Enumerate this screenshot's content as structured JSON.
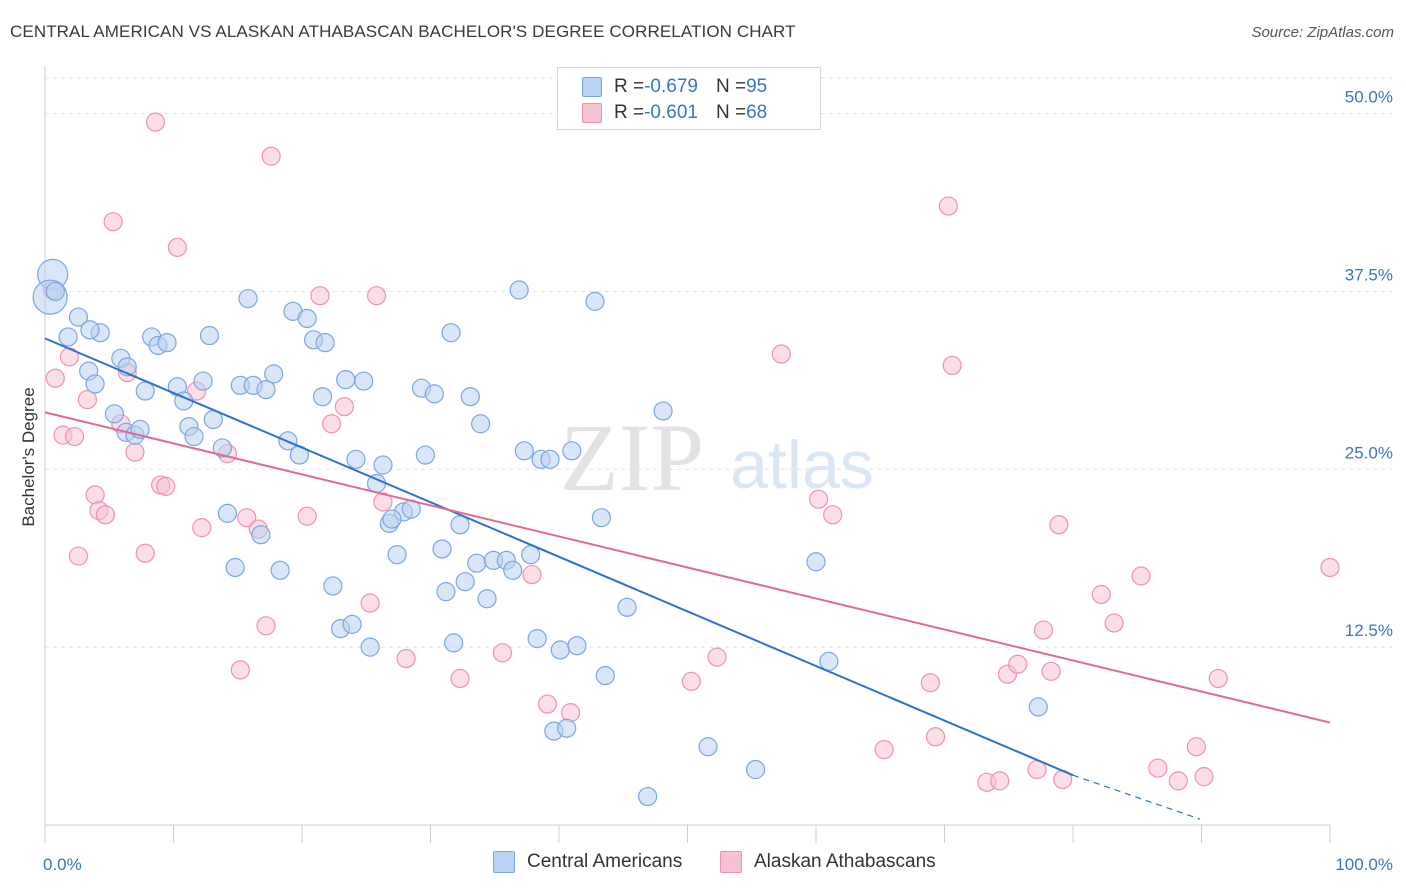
{
  "title": "CENTRAL AMERICAN VS ALASKAN ATHABASCAN BACHELOR'S DEGREE CORRELATION CHART",
  "source": "Source: ZipAtlas.com",
  "watermark": {
    "zip": "ZIP",
    "atlas": "atlas"
  },
  "colors": {
    "blue_fill": "#b9d2f3",
    "blue_stroke": "#7aa6e0",
    "blue_line": "#2e6fd1",
    "pink_fill": "#f7c3d2",
    "pink_stroke": "#ec93ad",
    "pink_line": "#e06a92",
    "tick_label": "#3b73c8",
    "grid": "#e1e1e1"
  },
  "legend": {
    "r_label": "R = ",
    "n_label": "N = ",
    "series": [
      {
        "r": "-0.679",
        "n": "95"
      },
      {
        "r": "-0.601",
        "n": "68"
      }
    ]
  },
  "chart_data": {
    "type": "scatter",
    "title": "CENTRAL AMERICAN VS ALASKAN ATHABASCAN BACHELOR'S DEGREE CORRELATION CHART",
    "xlabel": "",
    "ylabel": "Bachelor's Degree",
    "xlim": [
      0,
      100
    ],
    "ylim": [
      0,
      52.5
    ],
    "x_tick_labels": [
      "0.0%",
      "100.0%"
    ],
    "y_ticks": [
      12.5,
      25.0,
      37.5,
      50.0
    ],
    "y_tick_labels": [
      "12.5%",
      "25.0%",
      "37.5%",
      "50.0%"
    ],
    "grid": true,
    "legend_position": "top-center",
    "series": [
      {
        "name": "Central Americans",
        "color": "#b9d2f3",
        "trend": {
          "x": [
            0,
            80
          ],
          "y": [
            34.2,
            3.5
          ],
          "dashed_to": [
            100,
            0.2
          ]
        },
        "points": [
          [
            0.6,
            38.7
          ],
          [
            0.4,
            37.1
          ],
          [
            1.8,
            34.3
          ],
          [
            2.6,
            35.7
          ],
          [
            4.3,
            34.6
          ],
          [
            3.4,
            31.9
          ],
          [
            3.9,
            31.0
          ],
          [
            5.9,
            32.8
          ],
          [
            5.4,
            28.9
          ],
          [
            6.4,
            32.2
          ],
          [
            6.3,
            27.6
          ],
          [
            7.0,
            27.4
          ],
          [
            7.4,
            27.8
          ],
          [
            7.8,
            30.5
          ],
          [
            8.3,
            34.3
          ],
          [
            8.8,
            33.7
          ],
          [
            9.5,
            33.9
          ],
          [
            10.3,
            30.8
          ],
          [
            10.8,
            29.8
          ],
          [
            11.2,
            28.0
          ],
          [
            11.6,
            27.3
          ],
          [
            12.3,
            31.2
          ],
          [
            12.8,
            34.4
          ],
          [
            13.1,
            28.5
          ],
          [
            13.8,
            26.5
          ],
          [
            14.2,
            21.9
          ],
          [
            14.8,
            18.1
          ],
          [
            15.2,
            30.9
          ],
          [
            15.8,
            37.0
          ],
          [
            16.2,
            30.9
          ],
          [
            16.8,
            20.4
          ],
          [
            17.2,
            30.6
          ],
          [
            17.8,
            31.7
          ],
          [
            18.3,
            17.9
          ],
          [
            18.9,
            27.0
          ],
          [
            19.3,
            36.1
          ],
          [
            19.8,
            26.0
          ],
          [
            20.4,
            35.6
          ],
          [
            20.9,
            34.1
          ],
          [
            21.6,
            30.1
          ],
          [
            21.8,
            33.9
          ],
          [
            22.4,
            16.8
          ],
          [
            23.0,
            13.8
          ],
          [
            23.4,
            31.3
          ],
          [
            23.9,
            14.1
          ],
          [
            24.2,
            25.7
          ],
          [
            24.8,
            31.2
          ],
          [
            25.3,
            12.5
          ],
          [
            25.8,
            24.0
          ],
          [
            26.3,
            25.3
          ],
          [
            26.8,
            21.2
          ],
          [
            27.4,
            19.0
          ],
          [
            27.9,
            22.0
          ],
          [
            28.5,
            22.2
          ],
          [
            29.3,
            30.7
          ],
          [
            29.6,
            26.0
          ],
          [
            30.3,
            30.3
          ],
          [
            30.9,
            19.4
          ],
          [
            31.2,
            16.4
          ],
          [
            31.6,
            34.6
          ],
          [
            31.8,
            12.8
          ],
          [
            32.3,
            21.1
          ],
          [
            32.7,
            17.1
          ],
          [
            33.1,
            30.1
          ],
          [
            33.6,
            18.4
          ],
          [
            33.9,
            28.2
          ],
          [
            34.4,
            15.9
          ],
          [
            34.9,
            18.6
          ],
          [
            35.9,
            18.6
          ],
          [
            36.4,
            17.9
          ],
          [
            36.9,
            37.6
          ],
          [
            37.3,
            26.3
          ],
          [
            37.8,
            19.0
          ],
          [
            38.3,
            13.1
          ],
          [
            38.6,
            25.7
          ],
          [
            39.3,
            25.7
          ],
          [
            39.6,
            6.6
          ],
          [
            40.1,
            12.3
          ],
          [
            40.6,
            6.8
          ],
          [
            41.0,
            26.3
          ],
          [
            41.4,
            12.6
          ],
          [
            42.8,
            36.8
          ],
          [
            43.3,
            21.6
          ],
          [
            43.6,
            10.5
          ],
          [
            45.3,
            15.3
          ],
          [
            46.9,
            2.0
          ],
          [
            48.1,
            29.1
          ],
          [
            51.6,
            5.5
          ],
          [
            55.3,
            3.9
          ],
          [
            60.0,
            18.5
          ],
          [
            61.0,
            11.5
          ],
          [
            77.3,
            8.3
          ],
          [
            0.8,
            37.5
          ],
          [
            3.5,
            34.8
          ],
          [
            27.0,
            21.5
          ]
        ]
      },
      {
        "name": "Alaskan Athabascans",
        "color": "#f7c3d2",
        "trend": {
          "x": [
            0,
            100
          ],
          "y": [
            29.0,
            7.2
          ]
        },
        "points": [
          [
            0.6,
            37.6
          ],
          [
            0.8,
            31.4
          ],
          [
            1.4,
            27.4
          ],
          [
            1.9,
            32.9
          ],
          [
            2.3,
            27.3
          ],
          [
            2.6,
            18.9
          ],
          [
            3.3,
            29.9
          ],
          [
            3.9,
            23.2
          ],
          [
            4.2,
            22.1
          ],
          [
            4.7,
            21.8
          ],
          [
            5.3,
            42.4
          ],
          [
            5.9,
            28.2
          ],
          [
            6.4,
            31.8
          ],
          [
            7.0,
            26.2
          ],
          [
            7.8,
            19.1
          ],
          [
            8.6,
            49.4
          ],
          [
            9.0,
            23.9
          ],
          [
            9.4,
            23.8
          ],
          [
            10.3,
            40.6
          ],
          [
            11.8,
            30.5
          ],
          [
            12.2,
            20.9
          ],
          [
            14.2,
            26.1
          ],
          [
            15.2,
            10.9
          ],
          [
            15.7,
            21.6
          ],
          [
            16.6,
            20.8
          ],
          [
            17.2,
            14.0
          ],
          [
            17.6,
            47.0
          ],
          [
            20.4,
            21.7
          ],
          [
            21.4,
            37.2
          ],
          [
            22.3,
            28.2
          ],
          [
            23.3,
            29.4
          ],
          [
            25.3,
            15.6
          ],
          [
            25.8,
            37.2
          ],
          [
            26.3,
            22.7
          ],
          [
            28.1,
            11.7
          ],
          [
            32.3,
            10.3
          ],
          [
            35.6,
            12.1
          ],
          [
            37.9,
            17.6
          ],
          [
            39.1,
            8.5
          ],
          [
            40.9,
            7.9
          ],
          [
            50.3,
            10.1
          ],
          [
            52.3,
            11.8
          ],
          [
            57.3,
            33.1
          ],
          [
            60.2,
            22.9
          ],
          [
            61.3,
            21.8
          ],
          [
            65.3,
            5.3
          ],
          [
            68.9,
            10.0
          ],
          [
            69.3,
            6.2
          ],
          [
            70.3,
            43.5
          ],
          [
            70.6,
            32.3
          ],
          [
            73.3,
            3.0
          ],
          [
            74.3,
            3.1
          ],
          [
            74.9,
            10.6
          ],
          [
            75.7,
            11.3
          ],
          [
            77.2,
            3.9
          ],
          [
            77.7,
            13.7
          ],
          [
            78.3,
            10.8
          ],
          [
            78.9,
            21.1
          ],
          [
            79.2,
            3.2
          ],
          [
            82.2,
            16.2
          ],
          [
            83.2,
            14.2
          ],
          [
            85.3,
            17.5
          ],
          [
            86.6,
            4.0
          ],
          [
            88.2,
            3.1
          ],
          [
            89.6,
            5.5
          ],
          [
            90.2,
            3.4
          ],
          [
            91.3,
            10.3
          ],
          [
            100.0,
            18.1
          ]
        ]
      }
    ]
  }
}
